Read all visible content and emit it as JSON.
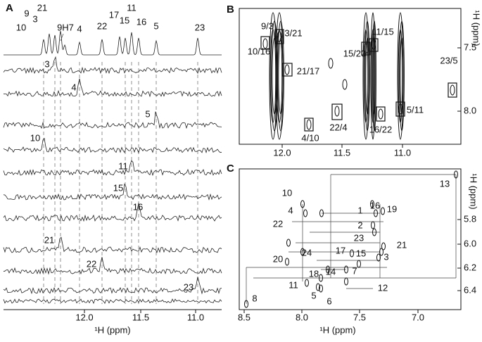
{
  "panels": [
    {
      "label": "A",
      "peak_labels": [
        "10",
        "9",
        "3",
        "21",
        "9H7",
        "4",
        "22",
        "17",
        "15",
        "11",
        "16",
        "5",
        "23"
      ],
      "trace_labels": [
        "3",
        "4",
        "5",
        "10",
        "11",
        "15",
        "16",
        "21",
        "22",
        "23"
      ],
      "xticks": [
        "12.0",
        "11.5",
        "11.0"
      ],
      "xlabel": "¹H (ppm)"
    },
    {
      "label": "B",
      "peak_labels": [
        "9/3",
        "3/21",
        "10/16",
        "21/17",
        "11/15",
        "15/23",
        "23/5",
        "22/4",
        "4/10",
        "16/22",
        "5/11"
      ],
      "xticks": [
        "12.0",
        "11.5",
        "11.0"
      ],
      "yticks": [
        "7.5",
        "8.0"
      ],
      "ylabel": "¹H (ppm)"
    },
    {
      "label": "C",
      "peak_labels": [
        "13",
        "10",
        "4",
        "22",
        "1",
        "16",
        "19",
        "2",
        "23",
        "17",
        "15",
        "21",
        "3",
        "24",
        "20",
        "7",
        "14",
        "18",
        "11",
        "12",
        "5",
        "6",
        "8"
      ],
      "xticks": [
        "8.5",
        "8.0",
        "7.5",
        "7.0"
      ],
      "yticks": [
        "5.8",
        "6.0",
        "6.2",
        "6.4"
      ],
      "xlabel": "¹H (ppm)",
      "ylabel": "¹H (ppm)"
    }
  ]
}
